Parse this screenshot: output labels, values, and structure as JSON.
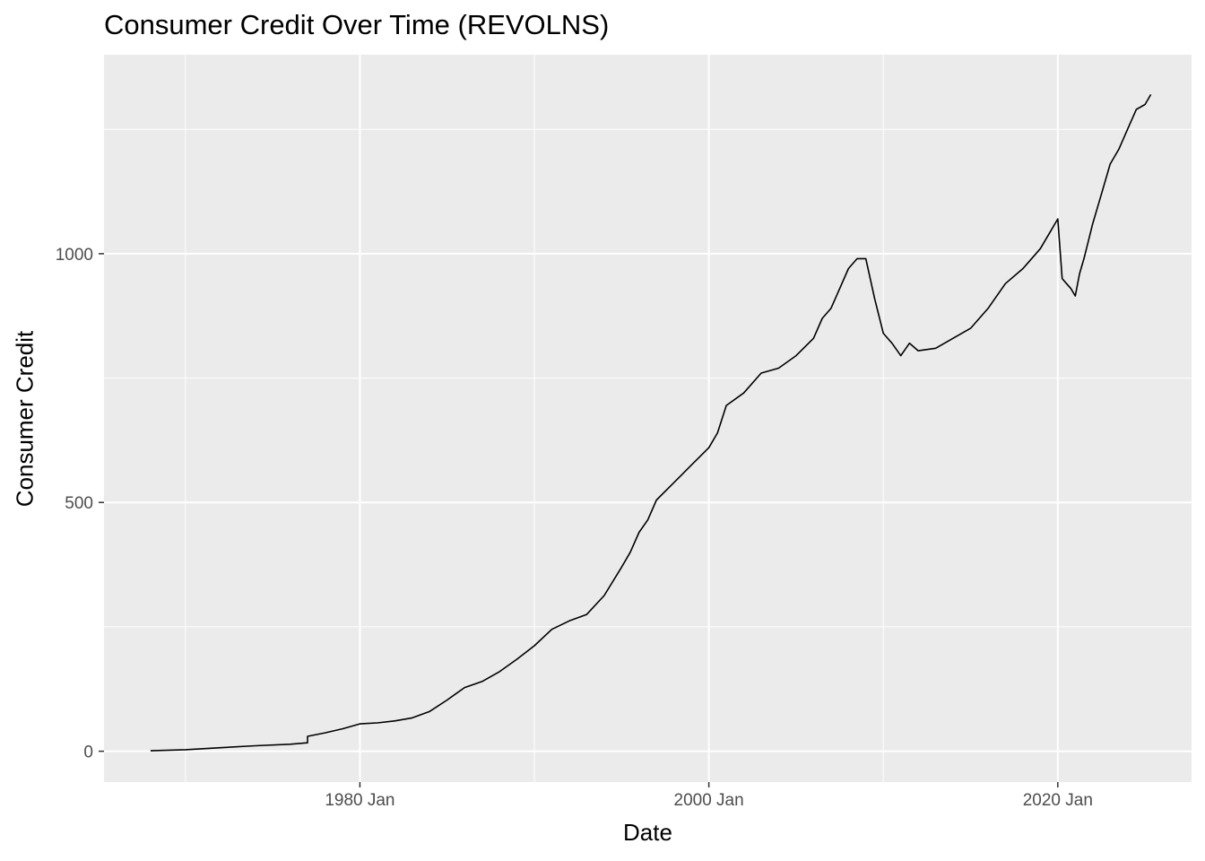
{
  "chart_data": {
    "type": "line",
    "title": "Consumer Credit Over Time (REVOLNS)",
    "xlabel": "Date",
    "ylabel": "Consumer Credit",
    "x_ticks": [
      {
        "date": "1980-01",
        "label": "1980 Jan"
      },
      {
        "date": "2000-01",
        "label": "2000 Jan"
      },
      {
        "date": "2020-01",
        "label": "2020 Jan"
      }
    ],
    "y_ticks": [
      0,
      500,
      1000
    ],
    "xlim": [
      "1965-05",
      "2027-09"
    ],
    "ylim": [
      -62,
      1400
    ],
    "grid": true,
    "series": [
      {
        "color": "#000000",
        "x": [
          "1968-01",
          "1970-01",
          "1972-01",
          "1974-01",
          "1976-01",
          "1977-01",
          "1977-01",
          "1978-01",
          "1979-01",
          "1980-01",
          "1981-01",
          "1982-01",
          "1983-01",
          "1984-01",
          "1985-01",
          "1986-01",
          "1987-01",
          "1988-01",
          "1989-01",
          "1990-01",
          "1991-01",
          "1992-01",
          "1993-01",
          "1994-01",
          "1995-01",
          "1995-07",
          "1996-01",
          "1996-07",
          "1997-01",
          "1998-01",
          "1999-01",
          "2000-01",
          "2000-07",
          "2001-01",
          "2002-01",
          "2003-01",
          "2004-01",
          "2005-01",
          "2006-01",
          "2006-07",
          "2007-01",
          "2007-07",
          "2008-01",
          "2008-07",
          "2009-01",
          "2009-07",
          "2010-01",
          "2010-07",
          "2011-01",
          "2011-07",
          "2012-01",
          "2013-01",
          "2014-01",
          "2015-01",
          "2016-01",
          "2017-01",
          "2018-01",
          "2019-01",
          "2019-07",
          "2020-01",
          "2020-04",
          "2020-07",
          "2020-10",
          "2021-01",
          "2021-04",
          "2021-07",
          "2022-01",
          "2022-07",
          "2023-01",
          "2023-07",
          "2024-01",
          "2024-07",
          "2025-01",
          "2025-05"
        ],
        "y": [
          1,
          3,
          7,
          11,
          14,
          17,
          30,
          37,
          45,
          55,
          57,
          61,
          67,
          80,
          103,
          128,
          140,
          160,
          185,
          212,
          245,
          262,
          275,
          313,
          370,
          400,
          440,
          465,
          505,
          540,
          575,
          610,
          640,
          695,
          720,
          760,
          770,
          795,
          830,
          870,
          890,
          930,
          970,
          990,
          990,
          910,
          840,
          820,
          795,
          820,
          805,
          810,
          830,
          850,
          890,
          940,
          970,
          1010,
          1040,
          1070,
          950,
          940,
          930,
          915,
          960,
          990,
          1060,
          1120,
          1180,
          1210,
          1250,
          1290,
          1300,
          1320
        ]
      }
    ]
  }
}
